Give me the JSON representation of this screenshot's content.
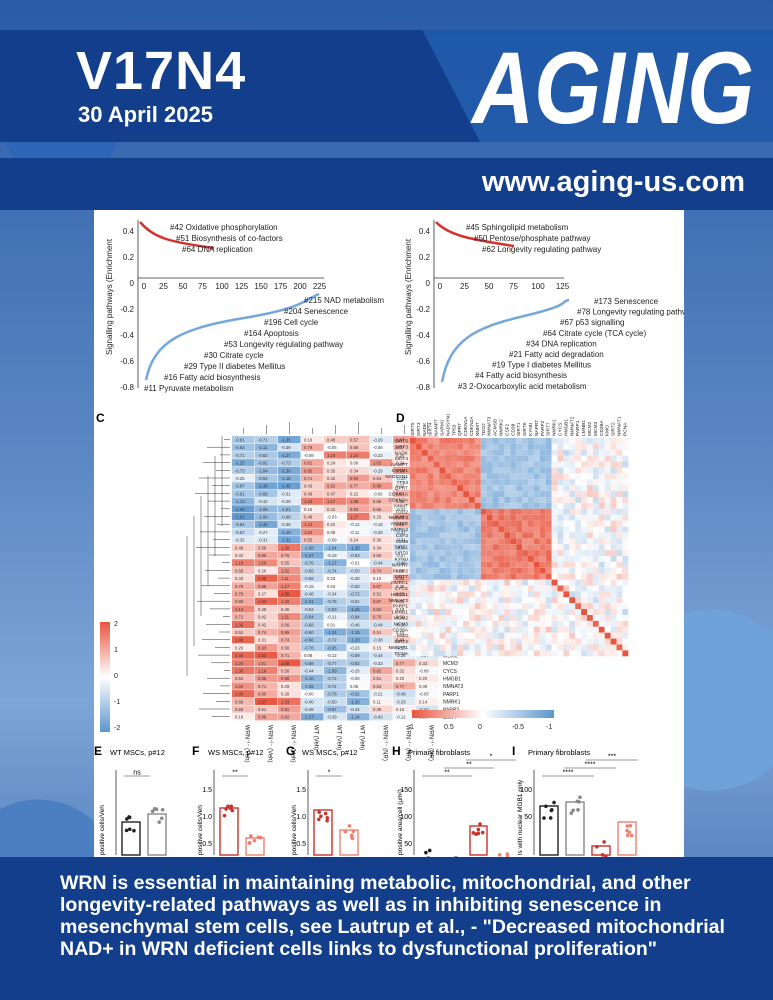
{
  "header": {
    "issue": "V17N4",
    "date": "30 April 2025",
    "journal_logo": "AGING",
    "url": "www.aging-us.com"
  },
  "caption": "WRN is essential in maintaining metabolic, mitochondrial, and other longevity-related pathways as well as in inhibiting senescence in mesenchymal stem cells, see Lautrup et al., - \"Decreased mitochondrial NAD+ in WRN deficient cells links to dysfunctional proliferation\"",
  "figure": {
    "left_plot": {
      "ylabel": "Signalling pathways (Enrichment",
      "yticks": [
        "0.4",
        "0.2",
        "0",
        "-0.2",
        "-0.4",
        "-0.6",
        "-0.8"
      ],
      "xticks": [
        "0",
        "25",
        "50",
        "75",
        "100",
        "125",
        "150",
        "175",
        "200",
        "225"
      ],
      "top_labels": [
        "#42 Oxidative phosphorylation",
        "#51 Biosynthesis of co-factors",
        "#64 DNA replication"
      ],
      "bottom_labels": [
        "#215 NAD metabolism",
        "#204 Senescence",
        "#196 Cell cycle",
        "#164 Apoptosis",
        "#53 Longevity regulating pathway",
        "#30 Citrate cycle",
        "#29 Type II diabetes Mellitus",
        "#16 Fatty acid biosynthesis",
        "#11 Pyruvate metabolism"
      ]
    },
    "right_plot": {
      "ylabel": "Signalling pathways (Enrichment",
      "yticks": [
        "0.4",
        "0.2",
        "0",
        "-0.2",
        "-0.4",
        "-0.6",
        "-0.8"
      ],
      "xticks": [
        "0",
        "25",
        "50",
        "75",
        "100",
        "125"
      ],
      "top_labels": [
        "#45 Sphingolipid metabolism",
        "#50 Pentose/phosphate pathway",
        "#62 Longevity regulating pathway"
      ],
      "bottom_labels": [
        "#173 Senescence",
        "#78 Longevity regulating pathway",
        "#67 p53 signalling",
        "#64 Citrate cycle (TCA cycle)",
        "#34 DNA replication",
        "#21 Fatty acid degradation",
        "#19 Type I diabetes Mellitus",
        "#4 Fatty acid biosynthesis",
        "#3 2-Oxocarboxylic acid metabolism"
      ]
    },
    "panel_c": {
      "label": "C",
      "genes": [
        "ACMSD",
        "NMRK2",
        "NMNAT2",
        "SARM1",
        "NADSYN1",
        "TP53",
        "CDKN2A",
        "NNMT",
        "QPRT",
        "CDKN1A",
        "SIRT3",
        "KMO",
        "NADK",
        "TDO2",
        "SIRT5",
        "NAMPT",
        "SIRT4",
        "CSF2",
        "CD38A",
        "SIRT2",
        "PCNA",
        "NMNAT1",
        "KYNU",
        "NAPRT",
        "SIRT1",
        "SIRT6",
        "SIRT7",
        "LMNB1",
        "MCM2",
        "MCM3",
        "CYCS",
        "HMGB1",
        "NMNAT3",
        "PARP1",
        "NMRK1",
        "PARP2",
        "SIRT7"
      ],
      "columns": [
        "WRN⁻ˡ⁻ (Veh)",
        "WRN⁻ˡ⁻ (Veh)",
        "WRN⁻ˡ⁻ (Veh)",
        "WT (Veh)",
        "WT (Veh)",
        "WT (Veh)",
        "WRN⁻ˡ⁻ (NR)",
        "WRN⁻ˡ⁻ (NR)",
        "WRN⁻ˡ⁻ (NR)"
      ],
      "scale": [
        "2",
        "1",
        "0",
        "-1",
        "-2"
      ]
    },
    "panel_d": {
      "label": "D",
      "genes": [
        "SIRT5",
        "SIRT3",
        "NADK",
        "SIRT4",
        "NAMPT",
        "SARM1",
        "NADSYN1",
        "TP53",
        "QPRT",
        "CDKN1A",
        "CDKN2A",
        "NNMT",
        "TDO2",
        "NMNAT3",
        "ACMSD",
        "NMRK2",
        "CSF2",
        "CD38",
        "SIRT1",
        "SIRT6",
        "KYNU",
        "NAPRT",
        "PARP2",
        "SIRT7",
        "NMRK1",
        "CYCS",
        "HMGB1",
        "NMNAT2",
        "PARP1",
        "LMNB1",
        "MCM2",
        "MCM3",
        "CD38A",
        "KMO",
        "SIRT2",
        "NMNAT1",
        "PCNA"
      ],
      "scale": [
        "1",
        "0.5",
        "0",
        "-0.5",
        "-1"
      ]
    },
    "panel_e": {
      "label": "E",
      "title": "WT MSCs, p#12",
      "ylabel": "positive cells/Veh",
      "sig": "ns"
    },
    "panel_f": {
      "label": "F",
      "title": "WS MSCs, p#12",
      "ylabel": "positive cells/Veh",
      "sig": "**",
      "yticks": [
        "1.5",
        "1.0",
        "0.5"
      ]
    },
    "panel_g": {
      "label": "G",
      "title": "WS MSCs, p#12",
      "ylabel": "positive cells/Veh",
      "sig": "*",
      "yticks": [
        "1.5",
        "1.0",
        "0.5"
      ]
    },
    "panel_h": {
      "label": "H",
      "title": "Primary fibroblasts",
      "ylabel": "positive area/cell (µm²)",
      "sigs": [
        "**",
        "**",
        "*"
      ],
      "yticks": [
        "150",
        "100",
        "50"
      ]
    },
    "panel_i": {
      "label": "I",
      "title": "Primary fibroblasts",
      "ylabel": "ls with nuclear MGB1 only",
      "sigs": [
        "****",
        "****",
        "***"
      ],
      "yticks": [
        "100",
        "50"
      ]
    }
  },
  "colors": {
    "navy": "#123e8c",
    "red": "#e8553f",
    "blue": "#5b96cf",
    "light_red": "#f4b3a4",
    "light_blue": "#b9d3ec"
  }
}
